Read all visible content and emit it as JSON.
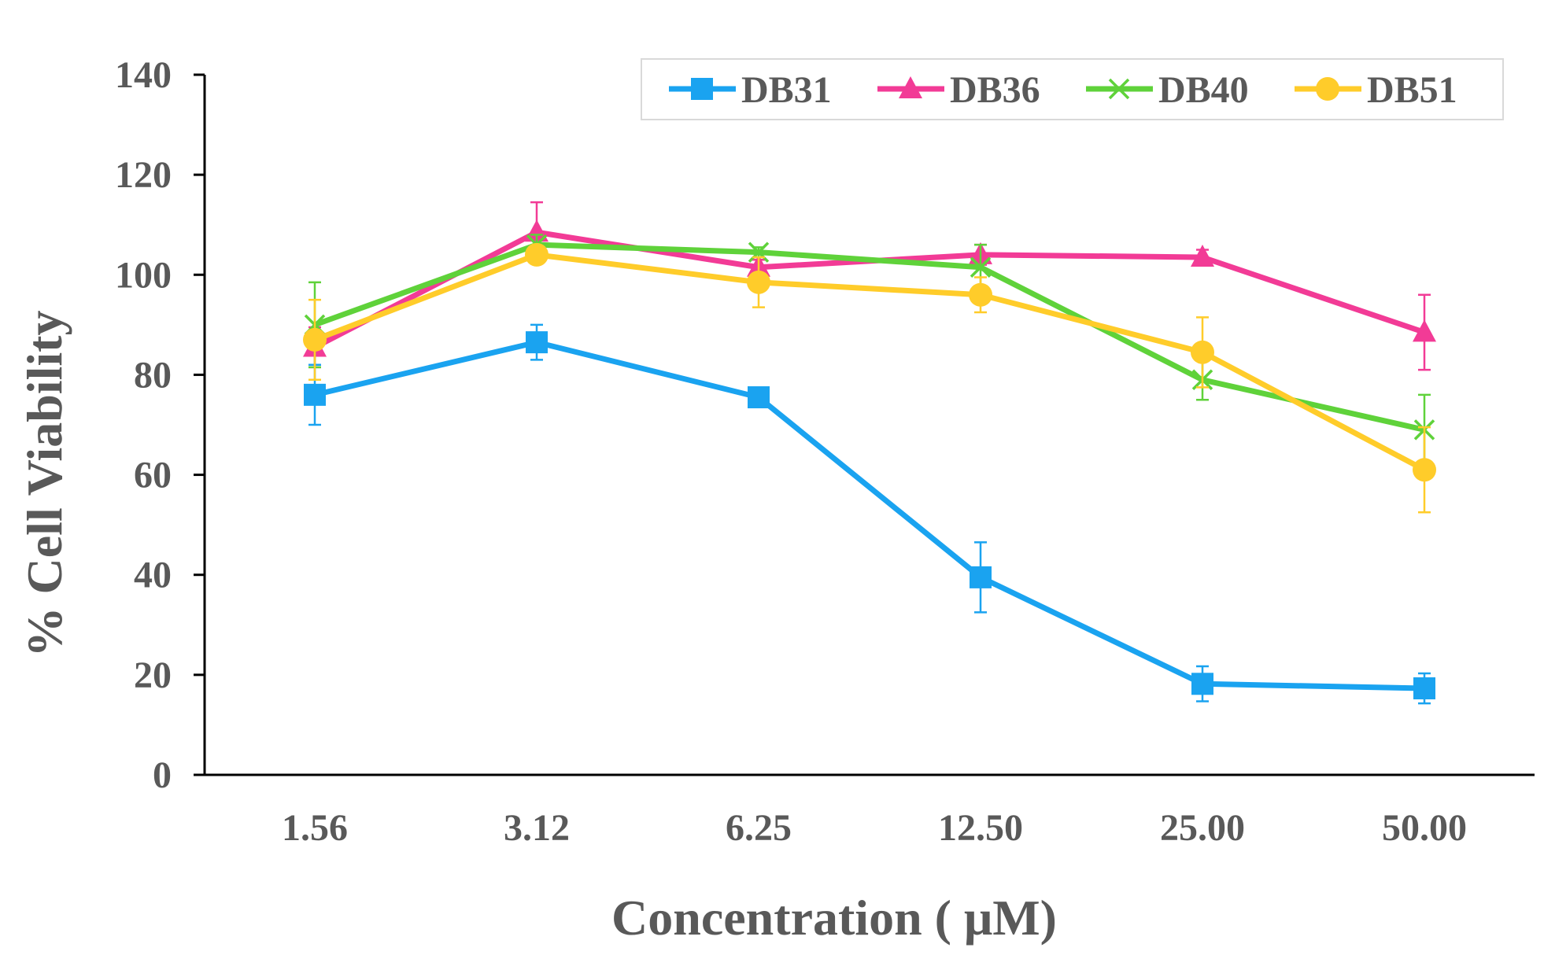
{
  "chart_data": {
    "type": "line",
    "title": "",
    "xlabel": "Concentration ( μM)",
    "ylabel": "% Cell Viability",
    "categories": [
      "1.56",
      "3.12",
      "6.25",
      "12.50",
      "25.00",
      "50.00"
    ],
    "ylim": [
      0,
      140
    ],
    "yticks": [
      "0",
      "20",
      "40",
      "60",
      "80",
      "100",
      "120",
      "140"
    ],
    "grid": false,
    "legend_position": "top-right",
    "series": [
      {
        "name": "DB31",
        "color": "#1aa3f0",
        "marker": "square",
        "values": [
          76,
          86.5,
          75.5,
          39.5,
          18.2,
          17.3
        ],
        "errors": [
          6,
          3.5,
          1.5,
          7,
          3.5,
          3
        ]
      },
      {
        "name": "DB36",
        "color": "#f23b96",
        "marker": "triangle",
        "values": [
          85.5,
          108.5,
          101.5,
          104,
          103.5,
          88.5
        ],
        "errors": [
          4,
          6,
          1.5,
          2,
          1.5,
          7.5
        ]
      },
      {
        "name": "DB40",
        "color": "#5fd23a",
        "marker": "x",
        "values": [
          90,
          106,
          104.5,
          101.5,
          79,
          69
        ],
        "errors": [
          8.5,
          2,
          1,
          4.5,
          4,
          7
        ]
      },
      {
        "name": "DB51",
        "color": "#ffcc2a",
        "marker": "circle",
        "values": [
          87,
          104,
          98.5,
          96,
          84.5,
          61
        ],
        "errors": [
          8,
          1.5,
          5,
          3.5,
          7,
          8.5
        ]
      }
    ]
  }
}
